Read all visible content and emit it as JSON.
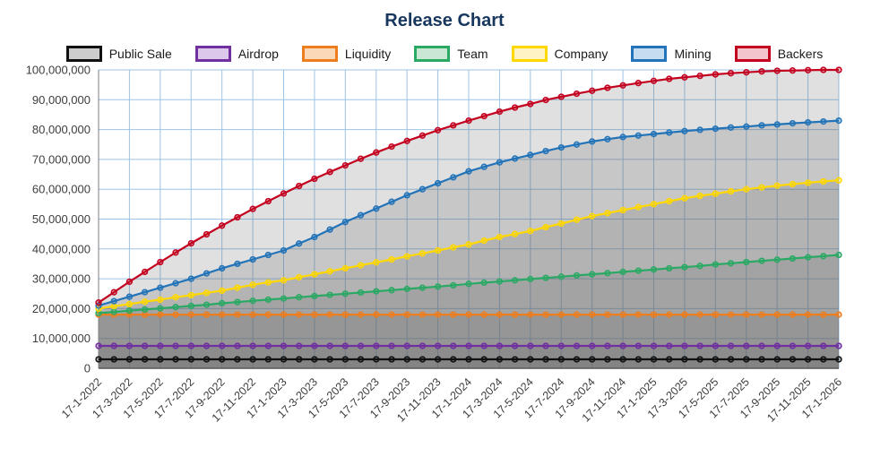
{
  "page": {
    "title": "Release Chart",
    "title_color": "#17375e",
    "background": "#ffffff"
  },
  "legend": {
    "items": [
      {
        "label": "Public Sale",
        "color": "#111111",
        "fill": "#cccccc"
      },
      {
        "label": "Airdrop",
        "color": "#7030a0",
        "fill": "#dcc8ea"
      },
      {
        "label": "Liquidity",
        "color": "#ee7d1d",
        "fill": "#fbd9b8"
      },
      {
        "label": "Team",
        "color": "#2aa964",
        "fill": "#c8e8d4"
      },
      {
        "label": "Company",
        "color": "#ffd800",
        "fill": "#fdf3c4"
      },
      {
        "label": "Mining",
        "color": "#2273b8",
        "fill": "#c6ddf1"
      },
      {
        "label": "Backers",
        "color": "#c4001f",
        "fill": "#f3c5cb"
      }
    ]
  },
  "chart_data": {
    "type": "line",
    "title": "Release Chart",
    "legend_position": "top",
    "grid": true,
    "grid_color": "#9dc3e6",
    "axis_color": "#595959",
    "area_fill": "#666666",
    "area_fill_opacity": 0.2,
    "ylim": [
      0,
      100000000
    ],
    "y_ticks": [
      0,
      10000000,
      20000000,
      30000000,
      40000000,
      50000000,
      60000000,
      70000000,
      80000000,
      90000000,
      100000000
    ],
    "y_tick_labels": [
      "0",
      "10,000,000",
      "20,000,000",
      "30,000,000",
      "40,000,000",
      "50,000,000",
      "60,000,000",
      "70,000,000",
      "80,000,000",
      "90,000,000",
      "100,000,000"
    ],
    "x_tick_every": 2,
    "x_tick_labels": [
      "17-1-2022",
      "17-3-2022",
      "17-5-2022",
      "17-7-2022",
      "17-9-2022",
      "17-11-2022",
      "17-1-2023",
      "17-3-2023",
      "17-5-2023",
      "17-7-2023",
      "17-9-2023",
      "17-11-2023",
      "17-1-2024",
      "17-3-2024",
      "17-5-2024",
      "17-7-2024",
      "17-9-2024",
      "17-11-2024",
      "17-1-2025",
      "17-3-2025",
      "17-5-2025",
      "17-7-2025",
      "17-9-2025",
      "17-11-2025",
      "17-1-2026"
    ],
    "series": [
      {
        "name": "Public Sale",
        "color": "#111111",
        "values": [
          3000000,
          3000000,
          3000000,
          3000000,
          3000000,
          3000000,
          3000000,
          3000000,
          3000000,
          3000000,
          3000000,
          3000000,
          3000000,
          3000000,
          3000000,
          3000000,
          3000000,
          3000000,
          3000000,
          3000000,
          3000000,
          3000000,
          3000000,
          3000000,
          3000000,
          3000000,
          3000000,
          3000000,
          3000000,
          3000000,
          3000000,
          3000000,
          3000000,
          3000000,
          3000000,
          3000000,
          3000000,
          3000000,
          3000000,
          3000000,
          3000000,
          3000000,
          3000000,
          3000000,
          3000000,
          3000000,
          3000000,
          3000000,
          3000000
        ]
      },
      {
        "name": "Airdrop",
        "color": "#7030a0",
        "values": [
          7500000,
          7500000,
          7500000,
          7500000,
          7500000,
          7500000,
          7500000,
          7500000,
          7500000,
          7500000,
          7500000,
          7500000,
          7500000,
          7500000,
          7500000,
          7500000,
          7500000,
          7500000,
          7500000,
          7500000,
          7500000,
          7500000,
          7500000,
          7500000,
          7500000,
          7500000,
          7500000,
          7500000,
          7500000,
          7500000,
          7500000,
          7500000,
          7500000,
          7500000,
          7500000,
          7500000,
          7500000,
          7500000,
          7500000,
          7500000,
          7500000,
          7500000,
          7500000,
          7500000,
          7500000,
          7500000,
          7500000,
          7500000,
          7500000
        ]
      },
      {
        "name": "Liquidity",
        "color": "#ee7d1d",
        "values": [
          18000000,
          18000000,
          18000000,
          18000000,
          18000000,
          18000000,
          18000000,
          18000000,
          18000000,
          18000000,
          18000000,
          18000000,
          18000000,
          18000000,
          18000000,
          18000000,
          18000000,
          18000000,
          18000000,
          18000000,
          18000000,
          18000000,
          18000000,
          18000000,
          18000000,
          18000000,
          18000000,
          18000000,
          18000000,
          18000000,
          18000000,
          18000000,
          18000000,
          18000000,
          18000000,
          18000000,
          18000000,
          18000000,
          18000000,
          18000000,
          18000000,
          18000000,
          18000000,
          18000000,
          18000000,
          18000000,
          18000000,
          18000000,
          18000000
        ]
      },
      {
        "name": "Team",
        "color": "#2aa964",
        "values": [
          18500000,
          18900000,
          19300000,
          19700000,
          20100000,
          20500000,
          20900000,
          21300000,
          21800000,
          22200000,
          22600000,
          23000000,
          23400000,
          23800000,
          24200000,
          24600000,
          25000000,
          25400000,
          25800000,
          26200000,
          26600000,
          27000000,
          27400000,
          27800000,
          28300000,
          28700000,
          29100000,
          29500000,
          29900000,
          30300000,
          30700000,
          31100000,
          31500000,
          31900000,
          32300000,
          32700000,
          33100000,
          33500000,
          33900000,
          34300000,
          34800000,
          35200000,
          35600000,
          36000000,
          36400000,
          36800000,
          37200000,
          37600000,
          38000000
        ]
      },
      {
        "name": "Company",
        "color": "#ffd800",
        "values": [
          20000000,
          20800000,
          21500000,
          22300000,
          23000000,
          23800000,
          24500000,
          25300000,
          26000000,
          27000000,
          28000000,
          28800000,
          29500000,
          30500000,
          31500000,
          32500000,
          33500000,
          34500000,
          35500000,
          36500000,
          37500000,
          38500000,
          39500000,
          40500000,
          41500000,
          42800000,
          44000000,
          45000000,
          46000000,
          47300000,
          48500000,
          49800000,
          51000000,
          52000000,
          53000000,
          54000000,
          55000000,
          56000000,
          57000000,
          57800000,
          58500000,
          59300000,
          60000000,
          60600000,
          61200000,
          61700000,
          62200000,
          62600000,
          63000000
        ]
      },
      {
        "name": "Mining",
        "color": "#2273b8",
        "values": [
          21000000,
          22500000,
          24000000,
          25500000,
          27000000,
          28500000,
          30000000,
          31800000,
          33500000,
          35000000,
          36500000,
          38000000,
          39500000,
          41800000,
          44000000,
          46500000,
          49000000,
          51300000,
          53500000,
          55800000,
          58000000,
          60000000,
          62000000,
          64000000,
          66000000,
          67500000,
          69000000,
          70300000,
          71500000,
          72800000,
          74000000,
          75000000,
          76000000,
          76800000,
          77500000,
          78000000,
          78500000,
          79000000,
          79500000,
          79900000,
          80300000,
          80700000,
          81000000,
          81400000,
          81700000,
          82100000,
          82400000,
          82700000,
          83000000
        ]
      },
      {
        "name": "Backers",
        "color": "#c4001f",
        "values": [
          22000000,
          25500000,
          29000000,
          32300000,
          35600000,
          38800000,
          41900000,
          44900000,
          47800000,
          50600000,
          53400000,
          56000000,
          58600000,
          61100000,
          63500000,
          65800000,
          68000000,
          70200000,
          72300000,
          74300000,
          76200000,
          78000000,
          79800000,
          81400000,
          83000000,
          84500000,
          86000000,
          87400000,
          88600000,
          89900000,
          91000000,
          92000000,
          93000000,
          94000000,
          94800000,
          95600000,
          96300000,
          97000000,
          97500000,
          98000000,
          98500000,
          98900000,
          99200000,
          99500000,
          99700000,
          99800000,
          99900000,
          100000000,
          100000000
        ]
      }
    ]
  }
}
